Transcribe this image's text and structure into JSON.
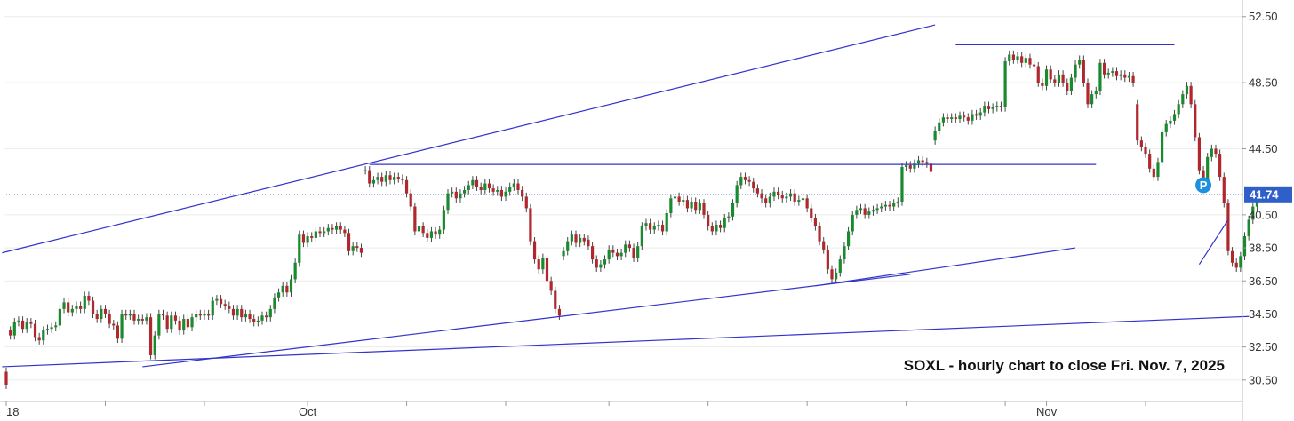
{
  "chart_data": {
    "type": "candlestick",
    "symbol": "SOXL",
    "annotation": "SOXL - hourly chart to close Fri. Nov. 7, 2025",
    "y_ticks": [
      "52.50",
      "48.50",
      "44.50",
      "40.50",
      "38.50",
      "36.50",
      "34.50",
      "32.50",
      "30.50"
    ],
    "y_tick_values": [
      52.5,
      48.5,
      44.5,
      40.5,
      38.5,
      36.5,
      34.5,
      32.5,
      30.5
    ],
    "ylim": [
      29.2,
      53.4
    ],
    "x_labels": [
      {
        "label": "18",
        "bar": 0
      },
      {
        "label": "Oct",
        "bar": 73
      },
      {
        "label": "Nov",
        "bar": 252
      }
    ],
    "last_price": 41.74,
    "last_price_label": "41.74",
    "marker_label": "P",
    "marker": {
      "bar": 290,
      "price": 42.3
    },
    "grid": true,
    "colors": {
      "up": "#1a8a2e",
      "down": "#b0282e",
      "line": "#3333cc",
      "price_tag": "#2f5fc8",
      "marker": "#1e90e0"
    },
    "candles": [
      [
        31,
        30.2
      ],
      [
        33.5,
        33.2
      ],
      [
        33.2,
        34.0
      ],
      [
        34.0,
        34.1
      ],
      [
        34.1,
        33.6
      ],
      [
        33.6,
        34.0
      ],
      [
        34.0,
        33.9
      ],
      [
        33.9,
        33.1
      ],
      [
        33.1,
        32.9
      ],
      [
        32.9,
        33.5
      ],
      [
        33.5,
        33.6
      ],
      [
        33.6,
        33.7
      ],
      [
        33.7,
        33.8
      ],
      [
        33.8,
        34.8
      ],
      [
        34.8,
        35.2
      ],
      [
        35.2,
        34.6
      ],
      [
        34.6,
        34.8
      ],
      [
        34.8,
        35.0
      ],
      [
        35.0,
        34.8
      ],
      [
        34.8,
        35.6
      ],
      [
        35.6,
        35.3
      ],
      [
        35.3,
        34.5
      ],
      [
        34.5,
        34.2
      ],
      [
        34.2,
        34.8
      ],
      [
        34.8,
        34.5
      ],
      [
        34.5,
        33.9
      ],
      [
        33.9,
        33.8
      ],
      [
        33.8,
        33.0
      ],
      [
        33.0,
        34.5
      ],
      [
        34.5,
        34.4
      ],
      [
        34.4,
        34.5
      ],
      [
        34.5,
        34.1
      ],
      [
        34.1,
        34.2
      ],
      [
        34.2,
        34.1
      ],
      [
        34.1,
        34.3
      ],
      [
        34.3,
        32.0
      ],
      [
        32.0,
        33.2
      ],
      [
        33.2,
        34.5
      ],
      [
        34.5,
        34.4
      ],
      [
        34.4,
        33.6
      ],
      [
        33.6,
        34.4
      ],
      [
        34.4,
        34.1
      ],
      [
        34.1,
        33.5
      ],
      [
        33.5,
        34.2
      ],
      [
        34.2,
        33.7
      ],
      [
        33.7,
        34.3
      ],
      [
        34.3,
        34.5
      ],
      [
        34.5,
        34.4
      ],
      [
        34.4,
        34.5
      ],
      [
        34.5,
        34.4
      ],
      [
        34.4,
        35.3
      ],
      [
        35.3,
        35.4
      ],
      [
        35.4,
        35.1
      ],
      [
        35.1,
        35.0
      ],
      [
        35.0,
        34.8
      ],
      [
        34.8,
        34.4
      ],
      [
        34.4,
        34.8
      ],
      [
        34.8,
        34.3
      ],
      [
        34.3,
        34.5
      ],
      [
        34.5,
        34.2
      ],
      [
        34.2,
        34.0
      ],
      [
        34.0,
        34.1
      ],
      [
        34.1,
        34.4
      ],
      [
        34.4,
        34.3
      ],
      [
        34.3,
        34.8
      ],
      [
        34.8,
        35.5
      ],
      [
        35.5,
        35.8
      ],
      [
        35.8,
        36.2
      ],
      [
        36.2,
        35.8
      ],
      [
        35.8,
        36.6
      ],
      [
        36.6,
        37.6
      ],
      [
        37.6,
        39.3
      ],
      [
        39.3,
        38.8
      ],
      [
        38.8,
        39.2
      ],
      [
        39.2,
        39.1
      ],
      [
        39.1,
        39.5
      ],
      [
        39.5,
        39.4
      ],
      [
        39.4,
        39.5
      ],
      [
        39.5,
        39.7
      ],
      [
        39.7,
        39.6
      ],
      [
        39.6,
        39.8
      ],
      [
        39.8,
        39.6
      ],
      [
        39.6,
        39.4
      ],
      [
        39.4,
        38.3
      ],
      [
        38.3,
        38.6
      ],
      [
        38.6,
        38.5
      ],
      [
        38.5,
        38.2
      ],
      [
        43.2,
        43.2
      ],
      [
        43.2,
        42.4
      ],
      [
        42.4,
        42.6
      ],
      [
        42.6,
        42.8
      ],
      [
        42.8,
        42.5
      ],
      [
        42.5,
        42.9
      ],
      [
        42.9,
        42.6
      ],
      [
        42.6,
        42.8
      ],
      [
        42.8,
        42.7
      ],
      [
        42.7,
        42.6
      ],
      [
        42.6,
        41.8
      ],
      [
        41.8,
        41.0
      ],
      [
        41.0,
        39.5
      ],
      [
        39.5,
        39.8
      ],
      [
        39.8,
        39.4
      ],
      [
        39.4,
        39.1
      ],
      [
        39.1,
        39.5
      ],
      [
        39.5,
        39.3
      ],
      [
        39.3,
        39.6
      ],
      [
        39.6,
        40.8
      ],
      [
        40.8,
        41.8
      ],
      [
        41.8,
        41.9
      ],
      [
        41.9,
        41.5
      ],
      [
        41.5,
        41.8
      ],
      [
        41.8,
        42.0
      ],
      [
        42.0,
        42.3
      ],
      [
        42.3,
        42.6
      ],
      [
        42.6,
        42.2
      ],
      [
        42.2,
        42.0
      ],
      [
        42.0,
        42.4
      ],
      [
        42.4,
        42.1
      ],
      [
        42.1,
        41.9
      ],
      [
        41.9,
        42.0
      ],
      [
        42.0,
        41.6
      ],
      [
        41.6,
        41.9
      ],
      [
        41.9,
        42.2
      ],
      [
        42.2,
        42.4
      ],
      [
        42.4,
        42.0
      ],
      [
        42.0,
        41.6
      ],
      [
        41.6,
        40.9
      ],
      [
        40.9,
        38.9
      ],
      [
        38.9,
        37.8
      ],
      [
        37.8,
        37.2
      ],
      [
        37.2,
        37.9
      ],
      [
        37.9,
        36.5
      ],
      [
        36.5,
        35.9
      ],
      [
        35.9,
        34.8
      ],
      [
        34.8,
        34.4
      ],
      [
        38.0,
        38.3
      ],
      [
        38.3,
        38.9
      ],
      [
        38.9,
        39.3
      ],
      [
        39.3,
        38.8
      ],
      [
        38.8,
        39.1
      ],
      [
        39.1,
        38.9
      ],
      [
        39.0,
        38.6
      ],
      [
        38.6,
        37.8
      ],
      [
        37.8,
        37.3
      ],
      [
        37.3,
        37.5
      ],
      [
        37.5,
        37.8
      ],
      [
        37.8,
        38.4
      ],
      [
        38.4,
        38.2
      ],
      [
        38.2,
        38.0
      ],
      [
        38.0,
        38.2
      ],
      [
        38.2,
        38.7
      ],
      [
        38.7,
        38.5
      ],
      [
        38.5,
        37.9
      ],
      [
        37.9,
        38.6
      ],
      [
        38.6,
        39.8
      ],
      [
        39.8,
        40.0
      ],
      [
        40.0,
        39.6
      ],
      [
        39.6,
        39.8
      ],
      [
        39.8,
        39.9
      ],
      [
        39.9,
        39.5
      ],
      [
        39.5,
        40.6
      ],
      [
        40.6,
        41.5
      ],
      [
        41.5,
        41.6
      ],
      [
        41.6,
        41.3
      ],
      [
        41.3,
        41.4
      ],
      [
        41.4,
        40.9
      ],
      [
        40.9,
        41.3
      ],
      [
        41.3,
        40.8
      ],
      [
        40.8,
        41.2
      ],
      [
        41.2,
        40.5
      ],
      [
        40.5,
        39.8
      ],
      [
        39.8,
        39.5
      ],
      [
        39.5,
        39.9
      ],
      [
        39.9,
        39.7
      ],
      [
        39.7,
        40.3
      ],
      [
        40.3,
        40.4
      ],
      [
        40.4,
        41.2
      ],
      [
        41.2,
        42.3
      ],
      [
        42.3,
        42.8
      ],
      [
        42.8,
        42.6
      ],
      [
        42.6,
        42.5
      ],
      [
        42.5,
        42.1
      ],
      [
        42.1,
        41.8
      ],
      [
        41.8,
        41.5
      ],
      [
        41.5,
        41.2
      ],
      [
        41.2,
        41.6
      ],
      [
        41.6,
        41.9
      ],
      [
        41.9,
        41.7
      ],
      [
        41.7,
        41.5
      ],
      [
        41.5,
        41.6
      ],
      [
        41.6,
        41.8
      ],
      [
        41.8,
        41.3
      ],
      [
        41.3,
        41.4
      ],
      [
        41.4,
        41.5
      ],
      [
        41.5,
        40.9
      ],
      [
        40.9,
        40.3
      ],
      [
        40.3,
        39.8
      ],
      [
        39.8,
        38.9
      ],
      [
        38.9,
        38.4
      ],
      [
        38.4,
        37.2
      ],
      [
        37.2,
        36.6
      ],
      [
        36.6,
        37.0
      ],
      [
        37.0,
        37.8
      ],
      [
        37.8,
        38.6
      ],
      [
        38.6,
        39.5
      ],
      [
        39.5,
        40.5
      ],
      [
        40.5,
        40.8
      ],
      [
        40.8,
        40.9
      ],
      [
        40.9,
        40.5
      ],
      [
        40.5,
        40.7
      ],
      [
        40.7,
        40.8
      ],
      [
        40.8,
        40.9
      ],
      [
        40.9,
        41.0
      ],
      [
        41.0,
        41.1
      ],
      [
        41.1,
        41.0
      ],
      [
        41.0,
        41.2
      ],
      [
        41.2,
        41.3
      ],
      [
        41.3,
        43.4
      ],
      [
        43.4,
        43.5
      ],
      [
        43.5,
        43.3
      ],
      [
        43.3,
        43.6
      ],
      [
        43.6,
        43.8
      ],
      [
        43.8,
        43.7
      ],
      [
        43.7,
        43.6
      ],
      [
        43.6,
        43.1
      ],
      [
        45.0,
        45.6
      ],
      [
        45.6,
        46.1
      ],
      [
        46.1,
        46.4
      ],
      [
        46.4,
        46.3
      ],
      [
        46.3,
        46.4
      ],
      [
        46.4,
        46.3
      ],
      [
        46.3,
        46.5
      ],
      [
        46.5,
        46.4
      ],
      [
        46.4,
        46.2
      ],
      [
        46.2,
        46.6
      ],
      [
        46.6,
        46.5
      ],
      [
        46.5,
        46.7
      ],
      [
        46.7,
        47.1
      ],
      [
        47.1,
        46.9
      ],
      [
        46.9,
        47.0
      ],
      [
        47.0,
        47.1
      ],
      [
        47.1,
        47.0
      ],
      [
        47.0,
        49.8
      ],
      [
        49.8,
        50.2
      ],
      [
        50.2,
        49.9
      ],
      [
        49.9,
        50.1
      ],
      [
        50.1,
        49.7
      ],
      [
        49.7,
        50.0
      ],
      [
        50.0,
        49.6
      ],
      [
        49.6,
        49.5
      ],
      [
        49.5,
        48.5
      ],
      [
        48.5,
        48.3
      ],
      [
        48.3,
        49.3
      ],
      [
        49.3,
        48.7
      ],
      [
        48.7,
        48.5
      ],
      [
        48.5,
        49.0
      ],
      [
        49.0,
        48.5
      ],
      [
        48.5,
        48.0
      ],
      [
        48.0,
        48.8
      ],
      [
        48.8,
        49.6
      ],
      [
        49.6,
        49.9
      ],
      [
        49.9,
        48.5
      ],
      [
        48.5,
        47.2
      ],
      [
        47.2,
        47.8
      ],
      [
        47.8,
        48.0
      ],
      [
        48.0,
        49.7
      ],
      [
        49.7,
        49.0
      ],
      [
        49.0,
        49.1
      ],
      [
        49.1,
        49.2
      ],
      [
        49.2,
        48.9
      ],
      [
        48.9,
        49.0
      ],
      [
        49.0,
        48.8
      ],
      [
        48.8,
        48.9
      ],
      [
        48.9,
        48.5
      ],
      [
        47.2,
        45.0
      ],
      [
        45.0,
        44.6
      ],
      [
        44.6,
        44.2
      ],
      [
        44.2,
        43.3
      ],
      [
        43.3,
        42.8
      ],
      [
        42.8,
        43.7
      ],
      [
        43.7,
        45.5
      ],
      [
        45.5,
        46.0
      ],
      [
        46.0,
        46.2
      ],
      [
        46.2,
        46.6
      ],
      [
        46.6,
        47.2
      ],
      [
        47.2,
        47.8
      ],
      [
        47.8,
        48.3
      ],
      [
        48.3,
        47.2
      ],
      [
        47.2,
        45.2
      ],
      [
        45.2,
        43.2
      ],
      [
        43.2,
        42.5
      ],
      [
        42.5,
        44.0
      ],
      [
        44.0,
        44.5
      ],
      [
        44.5,
        44.2
      ],
      [
        44.2,
        42.8
      ],
      [
        42.8,
        41.2
      ],
      [
        41.2,
        38.3
      ],
      [
        38.3,
        37.6
      ],
      [
        37.6,
        37.3
      ],
      [
        37.3,
        38.0
      ],
      [
        38.0,
        39.2
      ],
      [
        39.2,
        40.2
      ],
      [
        40.2,
        41.0
      ],
      [
        41.0,
        41.74
      ]
    ]
  }
}
